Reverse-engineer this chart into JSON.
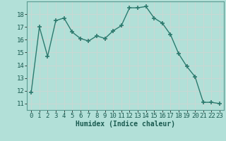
{
  "x": [
    0,
    1,
    2,
    3,
    4,
    5,
    6,
    7,
    8,
    9,
    10,
    11,
    12,
    13,
    14,
    15,
    16,
    17,
    18,
    19,
    20,
    21,
    22,
    23
  ],
  "y": [
    11.9,
    17.0,
    14.7,
    17.5,
    17.7,
    16.6,
    16.1,
    15.9,
    16.3,
    16.1,
    16.7,
    17.1,
    18.5,
    18.5,
    18.6,
    17.7,
    17.3,
    16.4,
    14.9,
    13.9,
    13.1,
    11.1,
    11.1,
    11.0
  ],
  "line_color": "#2d7a6e",
  "marker": "+",
  "marker_size": 4,
  "marker_lw": 1.2,
  "bg_color": "#b2e0d8",
  "grid_color": "#c8d8d4",
  "xlabel": "Humidex (Indice chaleur)",
  "ylim": [
    10.5,
    19.0
  ],
  "xlim": [
    -0.5,
    23.5
  ],
  "yticks": [
    11,
    12,
    13,
    14,
    15,
    16,
    17,
    18
  ],
  "xticks": [
    0,
    1,
    2,
    3,
    4,
    5,
    6,
    7,
    8,
    9,
    10,
    11,
    12,
    13,
    14,
    15,
    16,
    17,
    18,
    19,
    20,
    21,
    22,
    23
  ],
  "label_fontsize": 7,
  "tick_fontsize": 6.5,
  "line_width": 1.0
}
